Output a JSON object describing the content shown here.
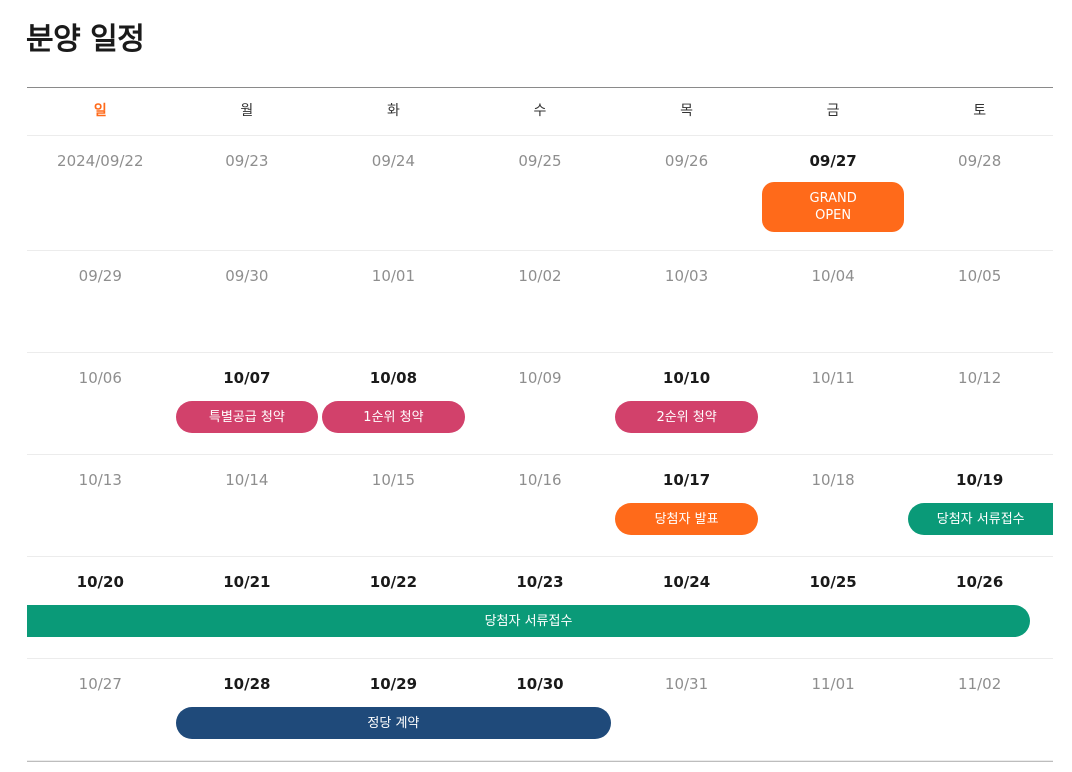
{
  "title": "분양 일정",
  "colors": {
    "orange": "#ff6a1a",
    "pink": "#d2416b",
    "green": "#0a9a78",
    "navy": "#1f4a7a"
  },
  "weekdays": [
    "일",
    "월",
    "화",
    "수",
    "목",
    "금",
    "토"
  ],
  "weeks": [
    {
      "dates": [
        {
          "label": "2024/09/22",
          "strong": false
        },
        {
          "label": "09/23",
          "strong": false
        },
        {
          "label": "09/24",
          "strong": false
        },
        {
          "label": "09/25",
          "strong": false
        },
        {
          "label": "09/26",
          "strong": false
        },
        {
          "label": "09/27",
          "strong": true
        },
        {
          "label": "09/28",
          "strong": false
        }
      ],
      "events": [
        {
          "label": "GRAND\nOPEN",
          "start": 5,
          "end": 5,
          "color": "orange",
          "name": "event-grand-open"
        }
      ]
    },
    {
      "dates": [
        {
          "label": "09/29",
          "strong": false
        },
        {
          "label": "09/30",
          "strong": false
        },
        {
          "label": "10/01",
          "strong": false
        },
        {
          "label": "10/02",
          "strong": false
        },
        {
          "label": "10/03",
          "strong": false
        },
        {
          "label": "10/04",
          "strong": false
        },
        {
          "label": "10/05",
          "strong": false
        }
      ],
      "events": []
    },
    {
      "dates": [
        {
          "label": "10/06",
          "strong": false
        },
        {
          "label": "10/07",
          "strong": true
        },
        {
          "label": "10/08",
          "strong": true
        },
        {
          "label": "10/09",
          "strong": false
        },
        {
          "label": "10/10",
          "strong": true
        },
        {
          "label": "10/11",
          "strong": false
        },
        {
          "label": "10/12",
          "strong": false
        }
      ],
      "events": [
        {
          "label": "특별공급 청약",
          "start": 1,
          "end": 1,
          "color": "pink",
          "name": "event-special-supply"
        },
        {
          "label": "1순위 청약",
          "start": 2,
          "end": 2,
          "color": "pink",
          "name": "event-first-priority"
        },
        {
          "label": "2순위 청약",
          "start": 4,
          "end": 4,
          "color": "pink",
          "name": "event-second-priority"
        }
      ]
    },
    {
      "dates": [
        {
          "label": "10/13",
          "strong": false
        },
        {
          "label": "10/14",
          "strong": false
        },
        {
          "label": "10/15",
          "strong": false
        },
        {
          "label": "10/16",
          "strong": false
        },
        {
          "label": "10/17",
          "strong": true
        },
        {
          "label": "10/18",
          "strong": false
        },
        {
          "label": "10/19",
          "strong": true
        }
      ],
      "events": [
        {
          "label": "당첨자 발표",
          "start": 4,
          "end": 4,
          "color": "orange",
          "name": "event-winner-announcement"
        },
        {
          "label": "당첨자 서류접수",
          "start": 6,
          "end": 6,
          "color": "green",
          "name": "event-document-submission-start",
          "continues": true
        }
      ]
    },
    {
      "dates": [
        {
          "label": "10/20",
          "strong": true
        },
        {
          "label": "10/21",
          "strong": true
        },
        {
          "label": "10/22",
          "strong": true
        },
        {
          "label": "10/23",
          "strong": true
        },
        {
          "label": "10/24",
          "strong": true
        },
        {
          "label": "10/25",
          "strong": true
        },
        {
          "label": "10/26",
          "strong": true
        }
      ],
      "events": [
        {
          "label": "당첨자 서류접수",
          "start": 0,
          "end": 6,
          "color": "green",
          "name": "event-document-submission",
          "continued": true
        }
      ]
    },
    {
      "dates": [
        {
          "label": "10/27",
          "strong": false
        },
        {
          "label": "10/28",
          "strong": true
        },
        {
          "label": "10/29",
          "strong": true
        },
        {
          "label": "10/30",
          "strong": true
        },
        {
          "label": "10/31",
          "strong": false
        },
        {
          "label": "11/01",
          "strong": false
        },
        {
          "label": "11/02",
          "strong": false
        }
      ],
      "events": [
        {
          "label": "정당 계약",
          "start": 1,
          "end": 3,
          "color": "navy",
          "name": "event-contract"
        }
      ]
    }
  ]
}
